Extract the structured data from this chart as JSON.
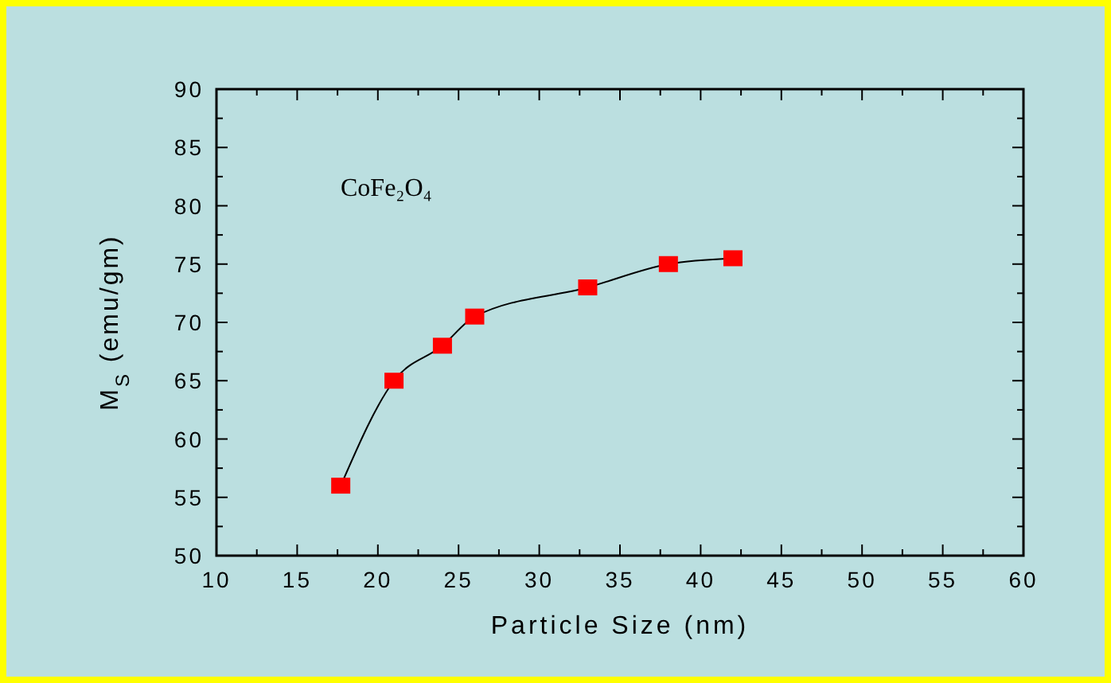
{
  "chart_data": {
    "type": "line",
    "xlabel": "Particle Size (nm)",
    "ylabel": "M$_{S}$ (emu/gm)",
    "annotations": [
      "CoFe₂O₄"
    ],
    "x": [
      17.7,
      21,
      24,
      26,
      33,
      38,
      42
    ],
    "series": [
      {
        "color": "#ff0000",
        "values": [
          56,
          65,
          68,
          70.5,
          73,
          75,
          75.5
        ]
      }
    ],
    "marker": "square",
    "line_style": "solid",
    "grid": false,
    "xlim": [
      10,
      60
    ],
    "ylim": [
      50,
      90
    ],
    "xticks": [
      10,
      {
        "value": 12.5,
        "label": null
      },
      15,
      {
        "value": 17.5,
        "label": null
      },
      20,
      {
        "value": 22.5,
        "label": null
      },
      25,
      {
        "value": 27.5,
        "label": null
      },
      30,
      {
        "value": 32.5,
        "label": null
      },
      35,
      {
        "value": 37.5,
        "label": null
      },
      40,
      {
        "value": 42.5,
        "label": null
      },
      45,
      {
        "value": 47.5,
        "label": null
      },
      50,
      {
        "value": 52.5,
        "label": null
      },
      55,
      {
        "value": 57.5,
        "label": null
      },
      60
    ],
    "yticks": [
      50,
      {
        "value": 52.5,
        "label": null
      },
      55,
      {
        "value": 57.5,
        "label": null
      },
      60,
      {
        "value": 62.5,
        "label": null
      },
      65,
      {
        "value": 67.5,
        "label": null
      },
      70,
      {
        "value": 72.5,
        "label": null
      },
      75,
      {
        "value": 77.5,
        "label": null
      },
      80,
      {
        "value": 82.5,
        "label": null
      },
      85,
      {
        "value": 87.5,
        "label": null
      },
      90
    ]
  }
}
